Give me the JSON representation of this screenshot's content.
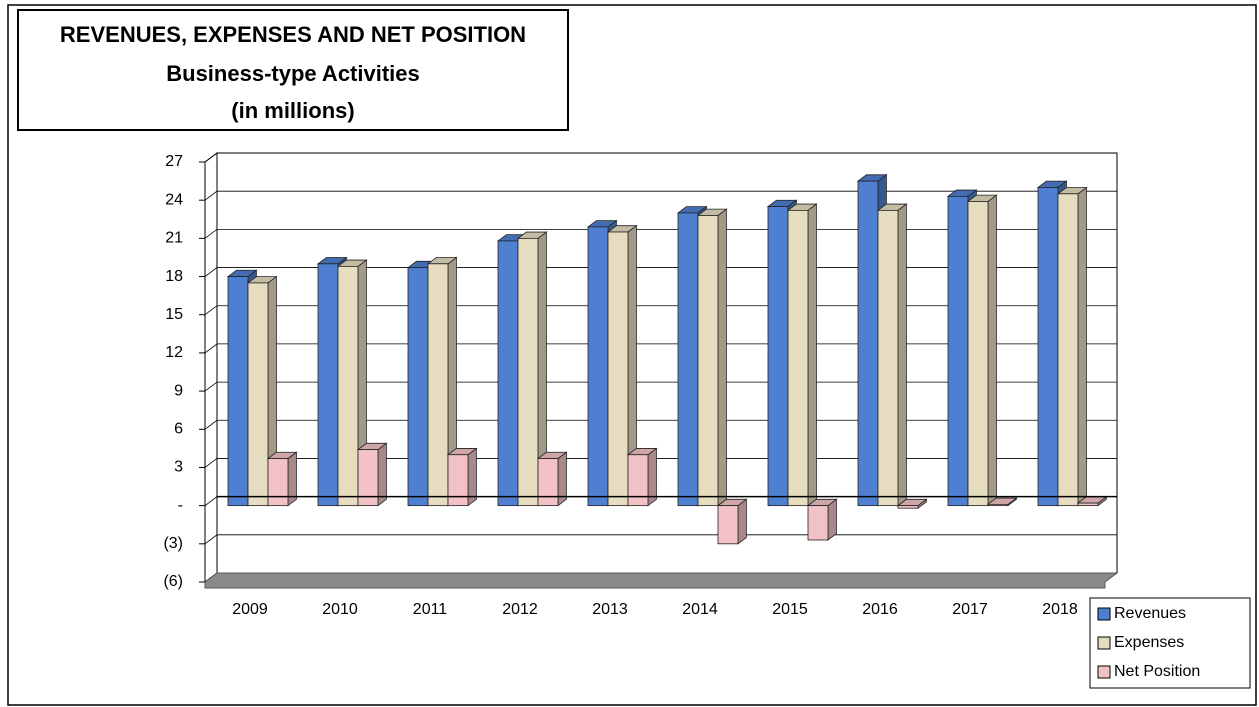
{
  "chart_data": {
    "type": "bar",
    "title": "REVENUES, EXPENSES AND NET POSITION",
    "subtitle": [
      "Business-type Activities",
      "(in millions)"
    ],
    "categories": [
      "2009",
      "2010",
      "2011",
      "2012",
      "2013",
      "2014",
      "2015",
      "2016",
      "2017",
      "2018"
    ],
    "series": [
      {
        "name": "Revenues",
        "color": "#4f7fd0",
        "values": [
          18.0,
          19.0,
          18.7,
          20.8,
          21.9,
          23.0,
          23.5,
          25.5,
          24.3,
          25.0
        ]
      },
      {
        "name": "Expenses",
        "color": "#e6dcc0",
        "values": [
          17.5,
          18.8,
          19.0,
          21.0,
          21.5,
          22.8,
          23.2,
          23.2,
          23.9,
          24.5
        ]
      },
      {
        "name": "Net Position",
        "color": "#f2c2c6",
        "values": [
          3.7,
          4.4,
          4.0,
          3.7,
          4.0,
          -3.0,
          -2.7,
          -0.2,
          0.1,
          0.2
        ]
      }
    ],
    "ylim": [
      -6,
      27
    ],
    "yticks": [
      {
        "value": -6,
        "label": "(6)"
      },
      {
        "value": -3,
        "label": "(3)"
      },
      {
        "value": 0,
        "label": "-"
      },
      3,
      6,
      9,
      12,
      15,
      18,
      21,
      24,
      27
    ],
    "grid": true,
    "legend": "bottom-right"
  }
}
